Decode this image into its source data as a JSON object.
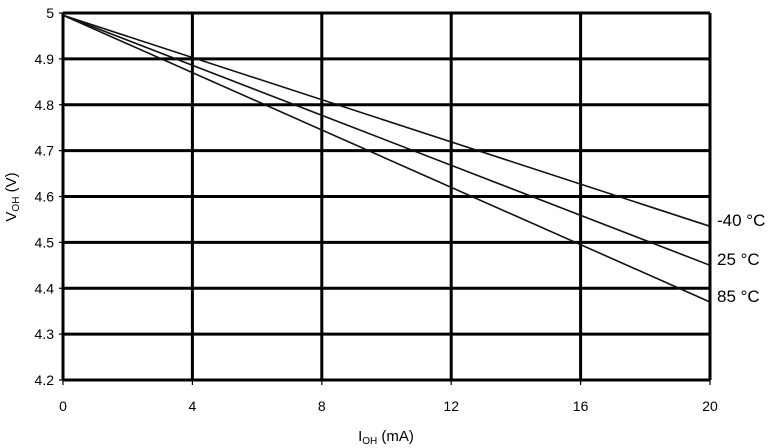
{
  "chart_data": {
    "type": "line",
    "xlabel": {
      "main": "I",
      "sub": "OH",
      "unit": " (mA)"
    },
    "ylabel": {
      "main": "V",
      "sub": "OH",
      "unit": " (V)"
    },
    "xlim": [
      0,
      20
    ],
    "ylim": [
      4.2,
      5.0
    ],
    "x_ticks": [
      "0",
      "4",
      "8",
      "12",
      "16",
      "20"
    ],
    "y_ticks": [
      "4.2",
      "4.3",
      "4.4",
      "4.5",
      "4.6",
      "4.7",
      "4.8",
      "4.9",
      "5"
    ],
    "grid": true,
    "series": [
      {
        "name": "-40 °C",
        "x": [
          0,
          20
        ],
        "y": [
          4.995,
          4.535
        ]
      },
      {
        "name": "25 °C",
        "x": [
          0,
          20
        ],
        "y": [
          4.995,
          4.45
        ]
      },
      {
        "name": "85 °C",
        "x": [
          0,
          20
        ],
        "y": [
          4.995,
          4.37
        ]
      }
    ]
  }
}
